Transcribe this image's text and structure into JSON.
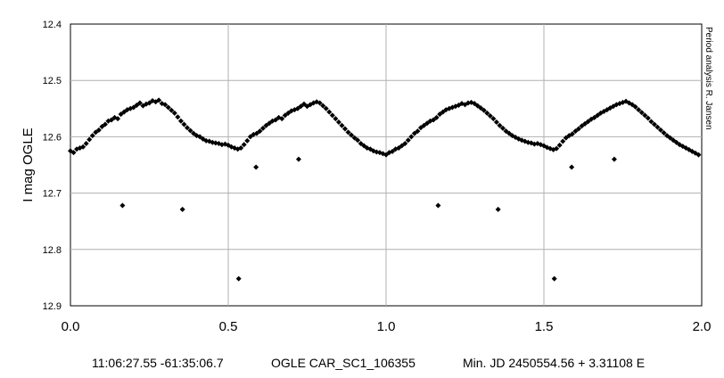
{
  "chart_data": {
    "type": "scatter",
    "title": "",
    "xlabel": "",
    "ylabel": "I mag OGLE",
    "side_label": "Period analysis  R. Jansen",
    "xlim": [
      0.0,
      2.0
    ],
    "ylim": [
      12.4,
      12.9
    ],
    "y_inverted": true,
    "grid": true,
    "x_ticks": [
      "0.0",
      "0.5",
      "1.0",
      "1.5",
      "2.0"
    ],
    "y_ticks": [
      "12.4",
      "12.5",
      "12.6",
      "12.7",
      "12.8",
      "12.9"
    ],
    "marker": "diamond",
    "marker_color": "#000000",
    "series": [
      {
        "values": [
          [
            0.0,
            12.625
          ],
          [
            0.01,
            12.628
          ],
          [
            0.02,
            12.622
          ],
          [
            0.03,
            12.62
          ],
          [
            0.04,
            12.618
          ],
          [
            0.05,
            12.612
          ],
          [
            0.06,
            12.605
          ],
          [
            0.07,
            12.598
          ],
          [
            0.08,
            12.592
          ],
          [
            0.09,
            12.588
          ],
          [
            0.1,
            12.582
          ],
          [
            0.11,
            12.578
          ],
          [
            0.12,
            12.572
          ],
          [
            0.13,
            12.57
          ],
          [
            0.14,
            12.566
          ],
          [
            0.15,
            12.568
          ],
          [
            0.16,
            12.56
          ],
          [
            0.17,
            12.556
          ],
          [
            0.18,
            12.552
          ],
          [
            0.19,
            12.55
          ],
          [
            0.2,
            12.548
          ],
          [
            0.21,
            12.544
          ],
          [
            0.22,
            12.54
          ],
          [
            0.23,
            12.545
          ],
          [
            0.24,
            12.542
          ],
          [
            0.25,
            12.54
          ],
          [
            0.26,
            12.536
          ],
          [
            0.27,
            12.538
          ],
          [
            0.28,
            12.535
          ],
          [
            0.29,
            12.541
          ],
          [
            0.3,
            12.543
          ],
          [
            0.31,
            12.548
          ],
          [
            0.32,
            12.553
          ],
          [
            0.33,
            12.558
          ],
          [
            0.34,
            12.565
          ],
          [
            0.35,
            12.572
          ],
          [
            0.36,
            12.578
          ],
          [
            0.37,
            12.584
          ],
          [
            0.38,
            12.589
          ],
          [
            0.39,
            12.594
          ],
          [
            0.4,
            12.598
          ],
          [
            0.41,
            12.6
          ],
          [
            0.42,
            12.604
          ],
          [
            0.43,
            12.607
          ],
          [
            0.44,
            12.608
          ],
          [
            0.45,
            12.61
          ],
          [
            0.46,
            12.611
          ],
          [
            0.47,
            12.612
          ],
          [
            0.48,
            12.614
          ],
          [
            0.49,
            12.613
          ],
          [
            0.5,
            12.615
          ],
          [
            0.51,
            12.618
          ],
          [
            0.52,
            12.62
          ],
          [
            0.53,
            12.622
          ],
          [
            0.54,
            12.62
          ],
          [
            0.55,
            12.614
          ],
          [
            0.56,
            12.607
          ],
          [
            0.57,
            12.6
          ],
          [
            0.58,
            12.596
          ],
          [
            0.59,
            12.594
          ],
          [
            0.6,
            12.59
          ],
          [
            0.61,
            12.585
          ],
          [
            0.62,
            12.58
          ],
          [
            0.63,
            12.576
          ],
          [
            0.64,
            12.572
          ],
          [
            0.65,
            12.57
          ],
          [
            0.66,
            12.566
          ],
          [
            0.67,
            12.568
          ],
          [
            0.68,
            12.562
          ],
          [
            0.69,
            12.558
          ],
          [
            0.7,
            12.554
          ],
          [
            0.71,
            12.552
          ],
          [
            0.72,
            12.55
          ],
          [
            0.73,
            12.546
          ],
          [
            0.74,
            12.542
          ],
          [
            0.75,
            12.546
          ],
          [
            0.76,
            12.543
          ],
          [
            0.77,
            12.54
          ],
          [
            0.78,
            12.538
          ],
          [
            0.79,
            12.54
          ],
          [
            0.8,
            12.545
          ],
          [
            0.81,
            12.55
          ],
          [
            0.82,
            12.556
          ],
          [
            0.83,
            12.562
          ],
          [
            0.84,
            12.568
          ],
          [
            0.85,
            12.574
          ],
          [
            0.86,
            12.58
          ],
          [
            0.87,
            12.586
          ],
          [
            0.88,
            12.592
          ],
          [
            0.89,
            12.597
          ],
          [
            0.9,
            12.602
          ],
          [
            0.91,
            12.606
          ],
          [
            0.92,
            12.612
          ],
          [
            0.93,
            12.616
          ],
          [
            0.94,
            12.62
          ],
          [
            0.95,
            12.622
          ],
          [
            0.96,
            12.625
          ],
          [
            0.97,
            12.627
          ],
          [
            0.98,
            12.628
          ],
          [
            0.99,
            12.63
          ],
          [
            1.0,
            12.632
          ],
          [
            1.01,
            12.628
          ],
          [
            1.02,
            12.626
          ],
          [
            1.03,
            12.622
          ],
          [
            1.04,
            12.62
          ],
          [
            1.05,
            12.616
          ],
          [
            1.06,
            12.612
          ],
          [
            1.07,
            12.606
          ],
          [
            1.08,
            12.6
          ],
          [
            1.09,
            12.594
          ],
          [
            1.1,
            12.59
          ],
          [
            1.11,
            12.584
          ],
          [
            1.12,
            12.58
          ],
          [
            1.13,
            12.576
          ],
          [
            1.14,
            12.572
          ],
          [
            1.15,
            12.57
          ],
          [
            1.16,
            12.566
          ],
          [
            1.17,
            12.56
          ],
          [
            1.18,
            12.556
          ],
          [
            1.19,
            12.552
          ],
          [
            1.2,
            12.55
          ],
          [
            1.21,
            12.548
          ],
          [
            1.22,
            12.546
          ],
          [
            1.23,
            12.544
          ],
          [
            1.24,
            12.541
          ],
          [
            1.25,
            12.543
          ],
          [
            1.26,
            12.54
          ],
          [
            1.27,
            12.539
          ],
          [
            1.28,
            12.541
          ],
          [
            1.29,
            12.545
          ],
          [
            1.3,
            12.549
          ],
          [
            1.31,
            12.553
          ],
          [
            1.32,
            12.558
          ],
          [
            1.33,
            12.563
          ],
          [
            1.34,
            12.568
          ],
          [
            1.35,
            12.574
          ],
          [
            1.36,
            12.58
          ],
          [
            1.37,
            12.585
          ],
          [
            1.38,
            12.59
          ],
          [
            1.39,
            12.594
          ],
          [
            1.4,
            12.598
          ],
          [
            1.41,
            12.601
          ],
          [
            1.42,
            12.604
          ],
          [
            1.43,
            12.606
          ],
          [
            1.44,
            12.608
          ],
          [
            1.45,
            12.61
          ],
          [
            1.46,
            12.611
          ],
          [
            1.47,
            12.613
          ],
          [
            1.48,
            12.612
          ],
          [
            1.49,
            12.614
          ],
          [
            1.5,
            12.616
          ],
          [
            1.51,
            12.619
          ],
          [
            1.52,
            12.621
          ],
          [
            1.53,
            12.623
          ],
          [
            1.54,
            12.621
          ],
          [
            1.55,
            12.615
          ],
          [
            1.56,
            12.608
          ],
          [
            1.57,
            12.602
          ],
          [
            1.58,
            12.598
          ],
          [
            1.59,
            12.595
          ],
          [
            1.6,
            12.59
          ],
          [
            1.61,
            12.586
          ],
          [
            1.62,
            12.581
          ],
          [
            1.63,
            12.577
          ],
          [
            1.64,
            12.573
          ],
          [
            1.65,
            12.569
          ],
          [
            1.66,
            12.566
          ],
          [
            1.67,
            12.562
          ],
          [
            1.68,
            12.558
          ],
          [
            1.69,
            12.555
          ],
          [
            1.7,
            12.552
          ],
          [
            1.71,
            12.549
          ],
          [
            1.72,
            12.546
          ],
          [
            1.73,
            12.543
          ],
          [
            1.74,
            12.541
          ],
          [
            1.75,
            12.539
          ],
          [
            1.76,
            12.537
          ],
          [
            1.77,
            12.54
          ],
          [
            1.78,
            12.543
          ],
          [
            1.79,
            12.547
          ],
          [
            1.8,
            12.552
          ],
          [
            1.81,
            12.557
          ],
          [
            1.82,
            12.562
          ],
          [
            1.83,
            12.567
          ],
          [
            1.84,
            12.573
          ],
          [
            1.85,
            12.578
          ],
          [
            1.86,
            12.583
          ],
          [
            1.87,
            12.588
          ],
          [
            1.88,
            12.593
          ],
          [
            1.89,
            12.598
          ],
          [
            1.9,
            12.602
          ],
          [
            1.91,
            12.606
          ],
          [
            1.92,
            12.61
          ],
          [
            1.93,
            12.614
          ],
          [
            1.94,
            12.617
          ],
          [
            1.95,
            12.62
          ],
          [
            1.96,
            12.623
          ],
          [
            1.97,
            12.626
          ],
          [
            1.98,
            12.629
          ],
          [
            1.99,
            12.632
          ],
          [
            0.165,
            12.722
          ],
          [
            0.355,
            12.729
          ],
          [
            0.533,
            12.852
          ],
          [
            0.588,
            12.654
          ],
          [
            0.723,
            12.64
          ],
          [
            1.165,
            12.722
          ],
          [
            1.355,
            12.729
          ],
          [
            1.533,
            12.852
          ],
          [
            1.588,
            12.654
          ],
          [
            1.723,
            12.64
          ]
        ]
      }
    ]
  },
  "footer": {
    "coords": "11:06:27.55 -61:35:06.7",
    "star": "OGLE CAR_SC1_106355",
    "ephemeris": "Min. JD 2450554.56 + 3.31108 E"
  }
}
